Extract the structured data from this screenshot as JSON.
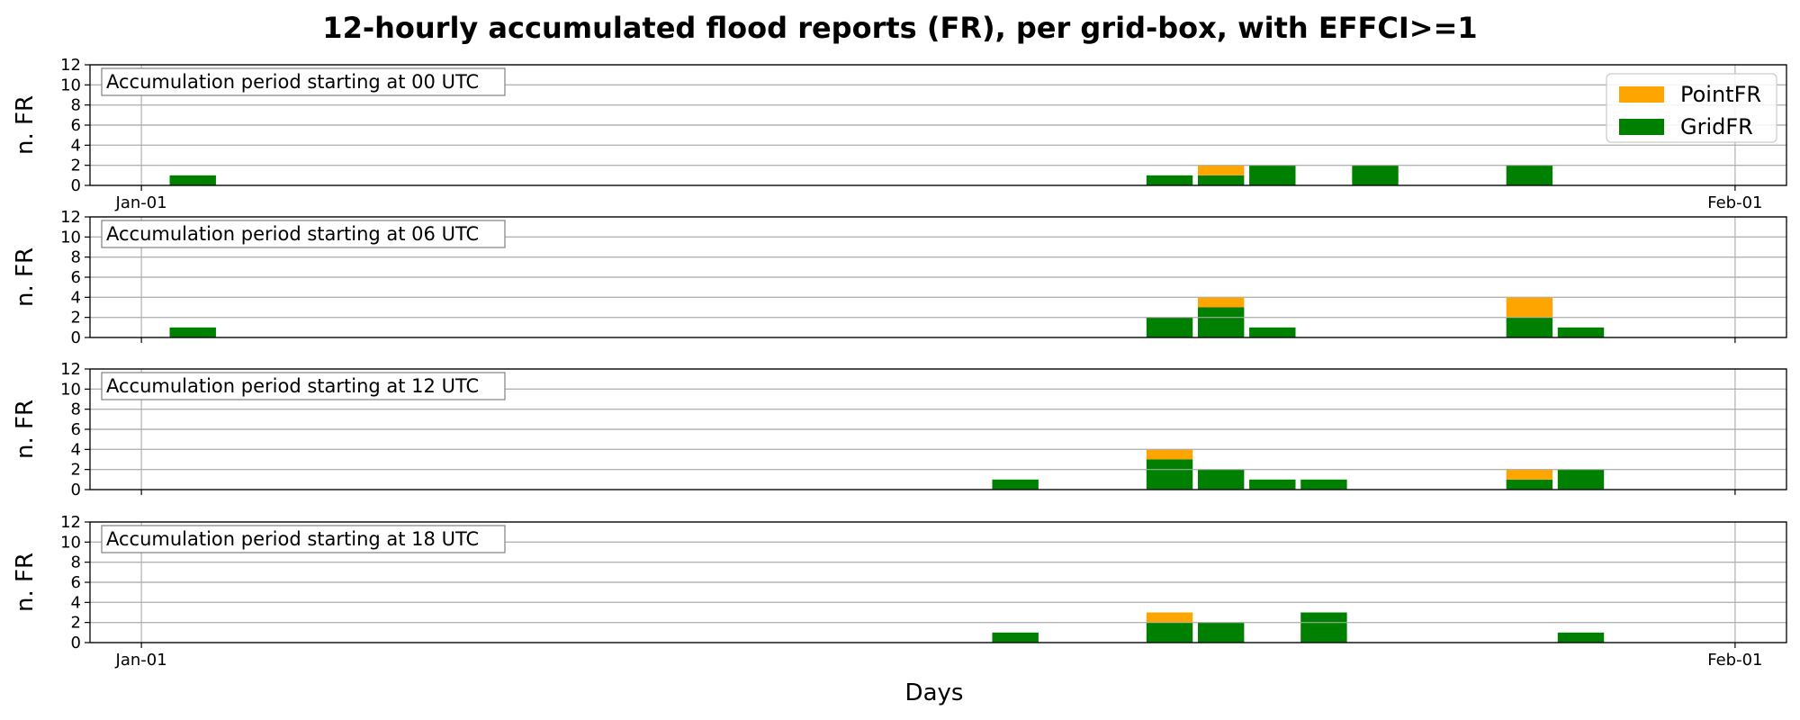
{
  "figure": {
    "title": "12-hourly accumulated flood reports (FR), per grid-box, with EFFCI>=1",
    "xlabel": "Days"
  },
  "colors": {
    "PointFR": "#ffa500",
    "GridFR": "#008000",
    "grid": "#b0b0b0"
  },
  "chart_data": [
    {
      "type": "bar",
      "stacked": true,
      "ylabel": "n. FR",
      "annotation": "Accumulation period starting at 00 UTC",
      "ylim": [
        0,
        12
      ],
      "yticks": [
        0,
        2,
        4,
        6,
        8,
        10,
        12
      ],
      "xlim": [
        -1.0,
        32.0
      ],
      "xticks": [
        {
          "x": 0,
          "label": "Jan-01"
        },
        {
          "x": 31,
          "label": "Feb-01"
        }
      ],
      "grid": true,
      "legend": {
        "placement": "top-right",
        "entries": [
          "PointFR",
          "GridFR"
        ]
      },
      "series": [
        {
          "name": "GridFR",
          "points": [
            {
              "x": 1,
              "y": 1
            },
            {
              "x": 20,
              "y": 1
            },
            {
              "x": 21,
              "y": 1
            },
            {
              "x": 22,
              "y": 2
            },
            {
              "x": 24,
              "y": 2
            },
            {
              "x": 27,
              "y": 2
            }
          ]
        },
        {
          "name": "PointFR",
          "points": [
            {
              "x": 21,
              "y": 1
            }
          ]
        }
      ]
    },
    {
      "type": "bar",
      "stacked": true,
      "ylabel": "n. FR",
      "annotation": "Accumulation period starting at 06 UTC",
      "ylim": [
        0,
        12
      ],
      "yticks": [
        0,
        2,
        4,
        6,
        8,
        10,
        12
      ],
      "xlim": [
        -1.0,
        32.0
      ],
      "xticks": [
        {
          "x": 0,
          "label": ""
        },
        {
          "x": 31,
          "label": ""
        }
      ],
      "grid": true,
      "series": [
        {
          "name": "GridFR",
          "points": [
            {
              "x": 1,
              "y": 1
            },
            {
              "x": 20,
              "y": 2
            },
            {
              "x": 21,
              "y": 3
            },
            {
              "x": 22,
              "y": 1
            },
            {
              "x": 27,
              "y": 2
            },
            {
              "x": 28,
              "y": 1
            }
          ]
        },
        {
          "name": "PointFR",
          "points": [
            {
              "x": 21,
              "y": 1
            },
            {
              "x": 27,
              "y": 2
            }
          ]
        }
      ]
    },
    {
      "type": "bar",
      "stacked": true,
      "ylabel": "n. FR",
      "annotation": "Accumulation period starting at 12 UTC",
      "ylim": [
        0,
        12
      ],
      "yticks": [
        0,
        2,
        4,
        6,
        8,
        10,
        12
      ],
      "xlim": [
        -1.0,
        32.0
      ],
      "xticks": [
        {
          "x": 0,
          "label": ""
        },
        {
          "x": 31,
          "label": ""
        }
      ],
      "grid": true,
      "series": [
        {
          "name": "GridFR",
          "points": [
            {
              "x": 17,
              "y": 1
            },
            {
              "x": 20,
              "y": 3
            },
            {
              "x": 21,
              "y": 2
            },
            {
              "x": 22,
              "y": 1
            },
            {
              "x": 23,
              "y": 1
            },
            {
              "x": 27,
              "y": 1
            },
            {
              "x": 28,
              "y": 2
            }
          ]
        },
        {
          "name": "PointFR",
          "points": [
            {
              "x": 20,
              "y": 1
            },
            {
              "x": 27,
              "y": 1
            }
          ]
        }
      ]
    },
    {
      "type": "bar",
      "stacked": true,
      "ylabel": "n. FR",
      "annotation": "Accumulation period starting at 18 UTC",
      "ylim": [
        0,
        12
      ],
      "yticks": [
        0,
        2,
        4,
        6,
        8,
        10,
        12
      ],
      "xlim": [
        -1.0,
        32.0
      ],
      "xticks": [
        {
          "x": 0,
          "label": "Jan-01"
        },
        {
          "x": 31,
          "label": "Feb-01"
        }
      ],
      "grid": true,
      "series": [
        {
          "name": "GridFR",
          "points": [
            {
              "x": 17,
              "y": 1
            },
            {
              "x": 20,
              "y": 2
            },
            {
              "x": 21,
              "y": 2
            },
            {
              "x": 23,
              "y": 3
            },
            {
              "x": 28,
              "y": 1
            }
          ]
        },
        {
          "name": "PointFR",
          "points": [
            {
              "x": 20,
              "y": 1
            }
          ]
        }
      ]
    }
  ]
}
